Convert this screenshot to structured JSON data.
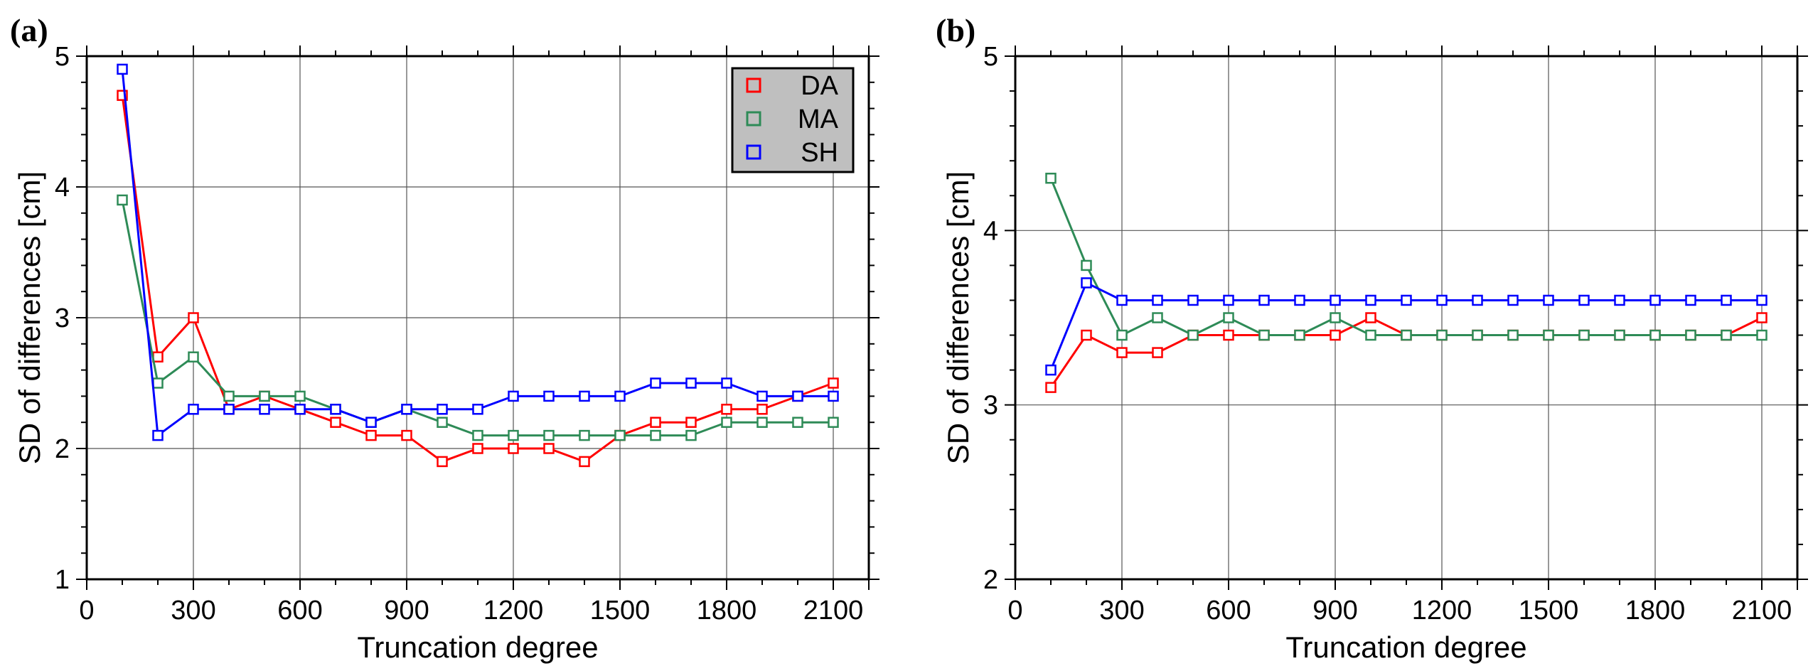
{
  "chart_data": [
    {
      "panel": "(a)",
      "type": "line",
      "xlabel": "Truncation degree",
      "ylabel": "SD of differences [cm]",
      "xlim": [
        0,
        2200
      ],
      "ylim": [
        1,
        5
      ],
      "xticks": [
        0,
        300,
        600,
        900,
        1200,
        1500,
        1800,
        2100
      ],
      "yticks": [
        1,
        2,
        3,
        4,
        5
      ],
      "grid": true,
      "legend": "top-right",
      "x": [
        100,
        200,
        300,
        400,
        500,
        600,
        700,
        800,
        900,
        1000,
        1100,
        1200,
        1300,
        1400,
        1500,
        1600,
        1700,
        1800,
        1900,
        2000,
        2100
      ],
      "series": [
        {
          "name": "DA",
          "color": "#ff0000",
          "values": [
            4.7,
            2.7,
            3.0,
            2.3,
            2.4,
            2.3,
            2.2,
            2.1,
            2.1,
            1.9,
            2.0,
            2.0,
            2.0,
            1.9,
            2.1,
            2.2,
            2.2,
            2.3,
            2.3,
            2.4,
            2.5
          ]
        },
        {
          "name": "MA",
          "color": "#2e8b57",
          "values": [
            3.9,
            2.5,
            2.7,
            2.4,
            2.4,
            2.4,
            2.3,
            2.2,
            2.3,
            2.2,
            2.1,
            2.1,
            2.1,
            2.1,
            2.1,
            2.1,
            2.1,
            2.2,
            2.2,
            2.2,
            2.2
          ]
        },
        {
          "name": "SH",
          "color": "#0000ff",
          "values": [
            4.9,
            2.1,
            2.3,
            2.3,
            2.3,
            2.3,
            2.3,
            2.2,
            2.3,
            2.3,
            2.3,
            2.4,
            2.4,
            2.4,
            2.4,
            2.5,
            2.5,
            2.5,
            2.4,
            2.4,
            2.4
          ]
        }
      ]
    },
    {
      "panel": "(b)",
      "type": "line",
      "xlabel": "Truncation degree",
      "ylabel": "SD of differences [cm]",
      "xlim": [
        0,
        2200
      ],
      "ylim": [
        2,
        5
      ],
      "xticks": [
        0,
        300,
        600,
        900,
        1200,
        1500,
        1800,
        2100
      ],
      "yticks": [
        2,
        3,
        4,
        5
      ],
      "grid": true,
      "legend": "none",
      "x": [
        100,
        200,
        300,
        400,
        500,
        600,
        700,
        800,
        900,
        1000,
        1100,
        1200,
        1300,
        1400,
        1500,
        1600,
        1700,
        1800,
        1900,
        2000,
        2100
      ],
      "series": [
        {
          "name": "DA",
          "color": "#ff0000",
          "values": [
            3.1,
            3.4,
            3.3,
            3.3,
            3.4,
            3.4,
            3.4,
            3.4,
            3.4,
            3.5,
            3.4,
            3.4,
            3.4,
            3.4,
            3.4,
            3.4,
            3.4,
            3.4,
            3.4,
            3.4,
            3.5
          ]
        },
        {
          "name": "MA",
          "color": "#2e8b57",
          "values": [
            4.3,
            3.8,
            3.4,
            3.5,
            3.4,
            3.5,
            3.4,
            3.4,
            3.5,
            3.4,
            3.4,
            3.4,
            3.4,
            3.4,
            3.4,
            3.4,
            3.4,
            3.4,
            3.4,
            3.4,
            3.4
          ]
        },
        {
          "name": "SH",
          "color": "#0000ff",
          "values": [
            3.2,
            3.7,
            3.6,
            3.6,
            3.6,
            3.6,
            3.6,
            3.6,
            3.6,
            3.6,
            3.6,
            3.6,
            3.6,
            3.6,
            3.6,
            3.6,
            3.6,
            3.6,
            3.6,
            3.6,
            3.6
          ]
        }
      ]
    }
  ]
}
